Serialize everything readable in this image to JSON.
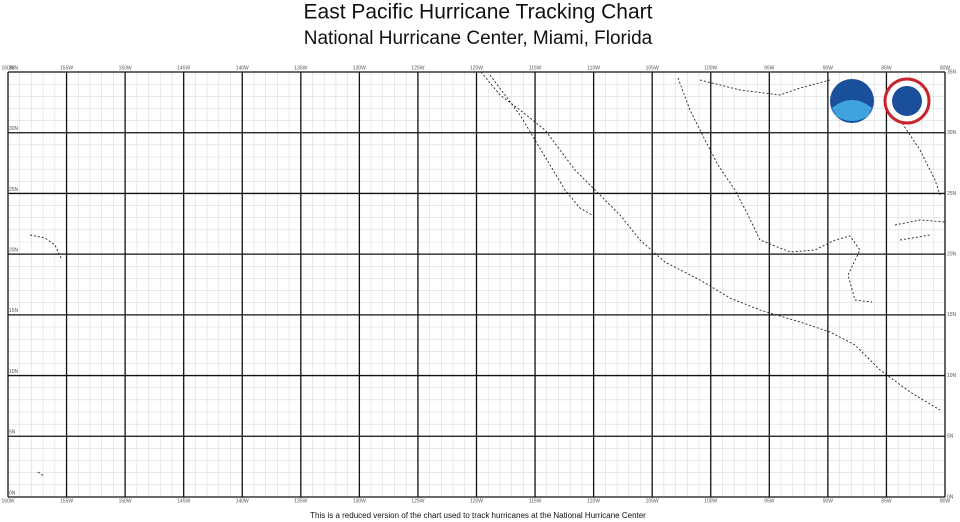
{
  "header": {
    "title": "East Pacific Hurricane Tracking Chart",
    "subtitle": "National Hurricane Center, Miami, Florida"
  },
  "map": {
    "xlim": [
      -160,
      -80
    ],
    "ylim": [
      0,
      35
    ],
    "xticks": [
      {
        "value": -160,
        "label": "160W"
      },
      {
        "value": -155,
        "label": "155W"
      },
      {
        "value": -150,
        "label": "150W"
      },
      {
        "value": -145,
        "label": "145W"
      },
      {
        "value": -140,
        "label": "140W"
      },
      {
        "value": -135,
        "label": "135W"
      },
      {
        "value": -130,
        "label": "130W"
      },
      {
        "value": -125,
        "label": "125W"
      },
      {
        "value": -120,
        "label": "120W"
      },
      {
        "value": -115,
        "label": "115W"
      },
      {
        "value": -110,
        "label": "110W"
      },
      {
        "value": -105,
        "label": "105W"
      },
      {
        "value": -100,
        "label": "100W"
      },
      {
        "value": -95,
        "label": "95W"
      },
      {
        "value": -90,
        "label": "90W"
      },
      {
        "value": -85,
        "label": "85W"
      },
      {
        "value": -80,
        "label": "80W"
      }
    ],
    "yticks": [
      {
        "value": 0,
        "label": "0N"
      },
      {
        "value": 5,
        "label": "5N"
      },
      {
        "value": 10,
        "label": "10N"
      },
      {
        "value": 15,
        "label": "15N"
      },
      {
        "value": 20,
        "label": "20N"
      },
      {
        "value": 25,
        "label": "25N"
      },
      {
        "value": 30,
        "label": "30N"
      },
      {
        "value": 35,
        "label": "35N"
      }
    ],
    "grid": true
  },
  "footer": "This is a reduced version of the chart used to track hurricanes at the National Hurricane Center"
}
